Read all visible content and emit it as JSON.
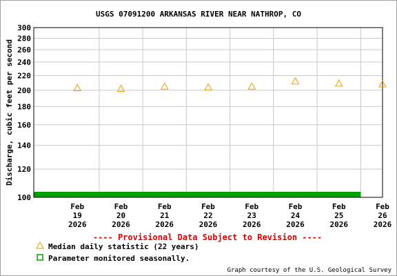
{
  "chart_data": {
    "type": "scatter",
    "title": "USGS 07091200 ARKANSAS RIVER NEAR NATHROP, CO",
    "ylabel": "Discharge, cubic feet per second",
    "xlabel": "",
    "y_scale": "log",
    "ylim": [
      100,
      300
    ],
    "y_ticks": [
      "100",
      "120",
      "140",
      "160",
      "180",
      "200",
      "220",
      "240",
      "260",
      "280",
      "300"
    ],
    "x_ticks": [
      {
        "line1": "Feb",
        "line2": "19",
        "line3": "2026"
      },
      {
        "line1": "Feb",
        "line2": "20",
        "line3": "2026"
      },
      {
        "line1": "Feb",
        "line2": "21",
        "line3": "2026"
      },
      {
        "line1": "Feb",
        "line2": "22",
        "line3": "2026"
      },
      {
        "line1": "Feb",
        "line2": "23",
        "line3": "2026"
      },
      {
        "line1": "Feb",
        "line2": "24",
        "line3": "2026"
      },
      {
        "line1": "Feb",
        "line2": "25",
        "line3": "2026"
      },
      {
        "line1": "Feb",
        "line2": "26",
        "line3": "2026"
      }
    ],
    "grid": true,
    "series": [
      {
        "name": "Median daily statistic (22 years)",
        "marker": "triangle",
        "color": "#e8a000",
        "x": [
          "2026-02-19",
          "2026-02-20",
          "2026-02-21",
          "2026-02-22",
          "2026-02-23",
          "2026-02-24",
          "2026-02-25",
          "2026-02-26"
        ],
        "values": [
          203,
          202,
          205,
          204,
          205,
          212,
          209,
          208
        ]
      }
    ],
    "seasonal_bar": {
      "name": "Parameter monitored seasonally.",
      "color": "#00a000",
      "from": "2026-02-18T12:00",
      "to": "2026-02-26T00:00"
    },
    "notice": "---- Provisional Data Subject to Revision ----",
    "notice_color": "#e00000",
    "credit": "Graph courtesy of the U.S. Geological Survey",
    "legend_placement": "bottom-left"
  }
}
